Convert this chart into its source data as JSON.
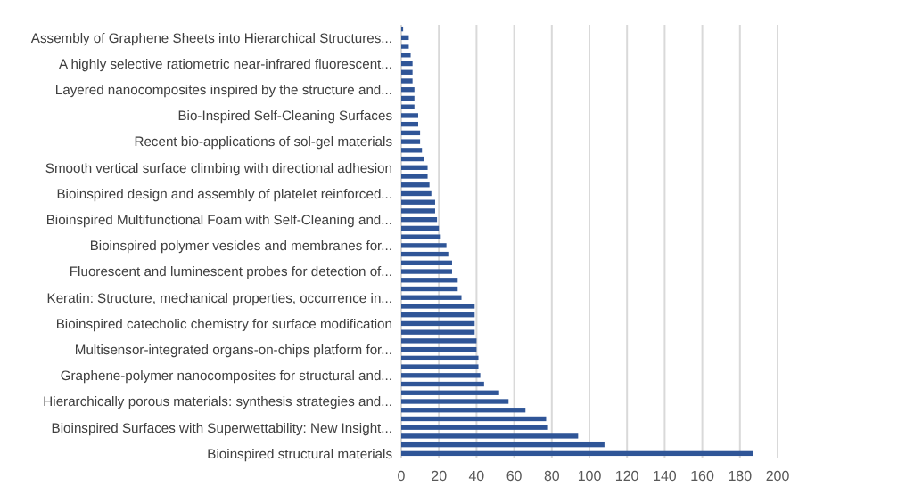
{
  "chart_data": {
    "type": "bar",
    "orientation": "horizontal",
    "color": "#2f5597",
    "grid": "x",
    "xlim": [
      0,
      200
    ],
    "xticks": [
      0,
      20,
      40,
      60,
      80,
      100,
      120,
      140,
      160,
      180,
      200
    ],
    "categories": [
      null,
      "Assembly of Graphene Sheets into Hierarchical Structures...",
      null,
      null,
      "A highly selective ratiometric near-infrared fluorescent...",
      null,
      null,
      "Layered nanocomposites inspired by the structure and...",
      null,
      null,
      "Bio-Inspired Self-Cleaning Surfaces",
      null,
      null,
      "Recent bio-applications of sol-gel materials",
      null,
      null,
      "Smooth vertical surface climbing with directional adhesion",
      null,
      null,
      "Bioinspired design and assembly of platelet reinforced...",
      null,
      null,
      "Bioinspired Multifunctional Foam with Self-Cleaning and...",
      null,
      null,
      "Bioinspired polymer vesicles and membranes for...",
      null,
      null,
      "Fluorescent and luminescent probes for detection of...",
      null,
      null,
      "Keratin: Structure, mechanical properties, occurrence in...",
      null,
      null,
      "Bioinspired catecholic chemistry for surface modification",
      null,
      null,
      "Multisensor-integrated organs-on-chips platform for...",
      null,
      null,
      "Graphene-polymer nanocomposites for structural and...",
      null,
      null,
      "Hierarchically porous materials: synthesis strategies and...",
      null,
      null,
      "Bioinspired Surfaces with Superwettability: New Insight...",
      null,
      null,
      "Bioinspired structural materials"
    ],
    "values": [
      1,
      4,
      4,
      5,
      6,
      6,
      6,
      7,
      7,
      7,
      9,
      9,
      10,
      10,
      11,
      12,
      14,
      14,
      15,
      16,
      18,
      18,
      19,
      20,
      21,
      24,
      25,
      27,
      27,
      30,
      30,
      32,
      39,
      39,
      39,
      39,
      40,
      40,
      41,
      41,
      42,
      44,
      52,
      57,
      66,
      77,
      78,
      94,
      108,
      187
    ]
  }
}
